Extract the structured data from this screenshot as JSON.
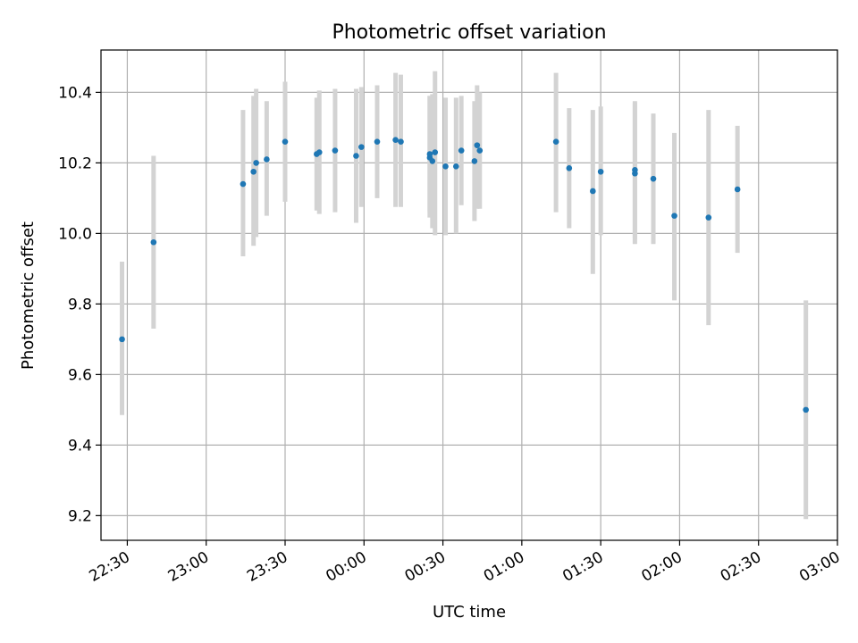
{
  "chart_data": {
    "type": "scatter",
    "title": "Photometric offset variation",
    "xlabel": "UTC time",
    "ylabel": "Photometric offset",
    "x_time_range": [
      "22:20",
      "03:00"
    ],
    "ylim": [
      9.13,
      10.52
    ],
    "grid": true,
    "x_ticks": [
      "22:30",
      "23:00",
      "23:30",
      "00:00",
      "00:30",
      "01:00",
      "01:30",
      "02:00",
      "02:30",
      "03:00"
    ],
    "y_ticks": [
      "9.2",
      "9.4",
      "9.6",
      "9.8",
      "10.0",
      "10.2",
      "10.4"
    ],
    "colors": {
      "points": "#1f77b4",
      "errorbars": "#d3d3d3",
      "grid": "#b0b0b0"
    },
    "points": [
      {
        "t": "22:28",
        "y": 9.7,
        "lo": 9.485,
        "hi": 9.92
      },
      {
        "t": "22:40",
        "y": 9.975,
        "lo": 9.73,
        "hi": 10.22
      },
      {
        "t": "23:14",
        "y": 10.14,
        "lo": 9.935,
        "hi": 10.35
      },
      {
        "t": "23:18",
        "y": 10.175,
        "lo": 9.965,
        "hi": 10.39
      },
      {
        "t": "23:19",
        "y": 10.2,
        "lo": 9.99,
        "hi": 10.41
      },
      {
        "t": "23:23",
        "y": 10.21,
        "lo": 10.05,
        "hi": 10.375
      },
      {
        "t": "23:30",
        "y": 10.26,
        "lo": 10.09,
        "hi": 10.43
      },
      {
        "t": "23:42",
        "y": 10.225,
        "lo": 10.065,
        "hi": 10.385
      },
      {
        "t": "23:43",
        "y": 10.23,
        "lo": 10.055,
        "hi": 10.405
      },
      {
        "t": "23:49",
        "y": 10.235,
        "lo": 10.06,
        "hi": 10.41
      },
      {
        "t": "23:57",
        "y": 10.22,
        "lo": 10.03,
        "hi": 10.41
      },
      {
        "t": "23:59",
        "y": 10.245,
        "lo": 10.075,
        "hi": 10.415
      },
      {
        "t": "00:05",
        "y": 10.26,
        "lo": 10.1,
        "hi": 10.42
      },
      {
        "t": "00:12",
        "y": 10.265,
        "lo": 10.075,
        "hi": 10.455
      },
      {
        "t": "00:14",
        "y": 10.26,
        "lo": 10.075,
        "hi": 10.45
      },
      {
        "t": "00:25",
        "y": 10.215,
        "lo": 10.045,
        "hi": 10.39
      },
      {
        "t": "00:25",
        "y": 10.225,
        "lo": 10.06,
        "hi": 10.39
      },
      {
        "t": "00:26",
        "y": 10.205,
        "lo": 10.015,
        "hi": 10.395
      },
      {
        "t": "00:27",
        "y": 10.23,
        "lo": 9.995,
        "hi": 10.46
      },
      {
        "t": "00:31",
        "y": 10.19,
        "lo": 9.995,
        "hi": 10.385
      },
      {
        "t": "00:35",
        "y": 10.19,
        "lo": 10.0,
        "hi": 10.385
      },
      {
        "t": "00:37",
        "y": 10.235,
        "lo": 10.08,
        "hi": 10.39
      },
      {
        "t": "00:42",
        "y": 10.205,
        "lo": 10.035,
        "hi": 10.375
      },
      {
        "t": "00:43",
        "y": 10.25,
        "lo": 10.07,
        "hi": 10.42
      },
      {
        "t": "00:44",
        "y": 10.235,
        "lo": 10.07,
        "hi": 10.4
      },
      {
        "t": "01:13",
        "y": 10.26,
        "lo": 10.06,
        "hi": 10.455
      },
      {
        "t": "01:18",
        "y": 10.185,
        "lo": 10.015,
        "hi": 10.355
      },
      {
        "t": "01:27",
        "y": 10.12,
        "lo": 9.885,
        "hi": 10.35
      },
      {
        "t": "01:30",
        "y": 10.175,
        "lo": 9.995,
        "hi": 10.36
      },
      {
        "t": "01:43",
        "y": 10.17,
        "lo": 9.97,
        "hi": 10.37
      },
      {
        "t": "01:43",
        "y": 10.18,
        "lo": 9.985,
        "hi": 10.375
      },
      {
        "t": "01:50",
        "y": 10.155,
        "lo": 9.97,
        "hi": 10.34
      },
      {
        "t": "01:58",
        "y": 10.05,
        "lo": 9.81,
        "hi": 10.285
      },
      {
        "t": "02:11",
        "y": 10.045,
        "lo": 9.74,
        "hi": 10.35
      },
      {
        "t": "02:22",
        "y": 10.125,
        "lo": 9.945,
        "hi": 10.305
      },
      {
        "t": "02:48",
        "y": 9.5,
        "lo": 9.19,
        "hi": 9.81
      }
    ]
  }
}
